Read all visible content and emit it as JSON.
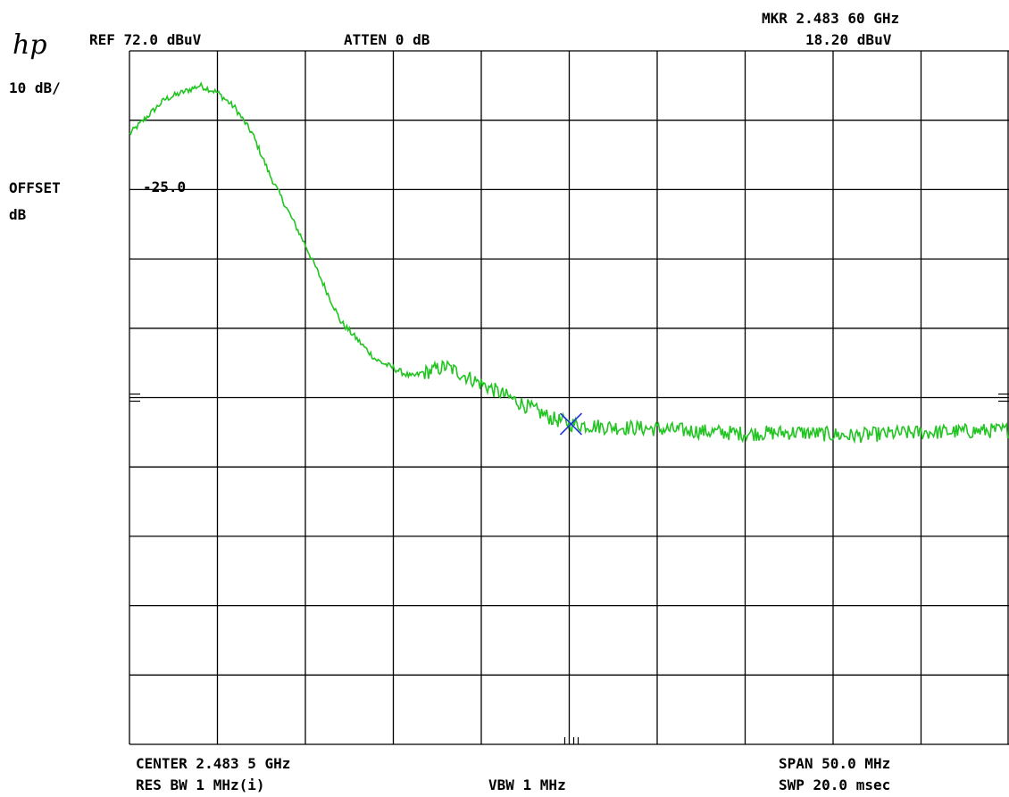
{
  "instrument": {
    "logo": "hp",
    "ref_level": "REF 72.0 dBuV",
    "attenuation": "ATTEN 0 dB",
    "scale": "10 dB/",
    "offset_label": "OFFSET",
    "offset_unit": "dB",
    "offset_value": "-25.0",
    "marker_freq": "MKR 2.483 60 GHz",
    "marker_level": "18.20 dBuV",
    "center": "CENTER 2.483 5 GHz",
    "res_bw": "RES BW 1 MHz(i)",
    "vbw": "VBW 1 MHz",
    "span": "SPAN 50.0 MHz",
    "sweep": "SWP 20.0 msec"
  },
  "colors": {
    "trace": "#22c422",
    "marker": "#2233dd",
    "grid": "#000000",
    "background": "#ffffff"
  },
  "chart_data": {
    "type": "line",
    "title": "",
    "xlabel": "",
    "ylabel": "",
    "x_unit": "GHz",
    "y_unit": "dBuV",
    "xlim": [
      2.4585,
      2.5085
    ],
    "ylim": [
      -28,
      72
    ],
    "grid": true,
    "series": [
      {
        "name": "",
        "x": [
          2.4585,
          2.4605,
          2.4625,
          2.4635,
          2.4645,
          2.4655,
          2.4665,
          2.4685,
          2.4705,
          2.4725,
          2.4745,
          2.4765,
          2.4785,
          2.4805,
          2.4825,
          2.4836,
          2.4855,
          2.4875,
          2.4905,
          2.4935,
          2.4965,
          2.4995,
          2.5025,
          2.5055,
          2.5085
        ],
        "y": [
          60.0,
          65.0,
          67.0,
          66.0,
          63.8,
          60.0,
          54.0,
          44.0,
          33.0,
          27.5,
          25.0,
          26.5,
          24.0,
          21.5,
          19.0,
          18.2,
          17.8,
          17.6,
          17.2,
          16.8,
          17.0,
          16.5,
          16.9,
          17.1,
          17.3
        ]
      }
    ],
    "marker": {
      "x": 2.4836,
      "y": 18.2
    }
  }
}
